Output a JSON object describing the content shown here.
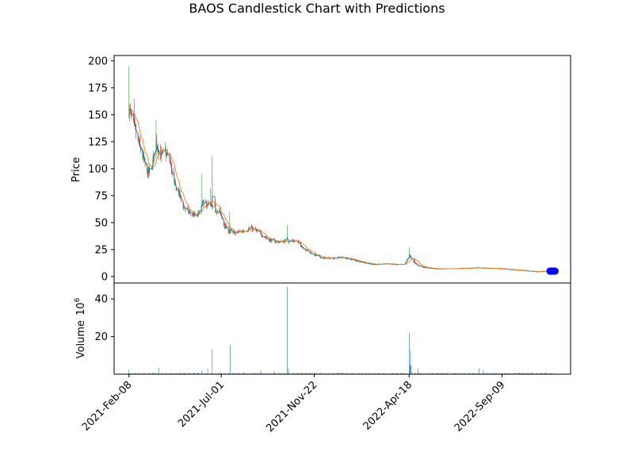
{
  "chart_data": {
    "type": "candlestick",
    "title": "BAOS Candlestick Chart with Predictions",
    "price_panel": {
      "ylabel": "Price",
      "ylim": [
        -6,
        205
      ],
      "yticks": [
        "0",
        "25",
        "50",
        "75",
        "100",
        "125",
        "150",
        "175",
        "200"
      ],
      "ytick_values": [
        0,
        25,
        50,
        75,
        100,
        125,
        150,
        175,
        200
      ],
      "up_color": "#2ca02c",
      "down_color": "#d62728",
      "ma_colors": [
        "#ff7f0e",
        "#1f77b4"
      ],
      "prediction_color": "#0000ff",
      "close_anchors": [
        [
          "2021-02-08",
          155
        ],
        [
          "2021-02-15",
          140
        ],
        [
          "2021-02-22",
          125
        ],
        [
          "2021-03-01",
          112
        ],
        [
          "2021-03-08",
          95
        ],
        [
          "2021-03-15",
          100
        ],
        [
          "2021-03-22",
          125
        ],
        [
          "2021-03-29",
          112
        ],
        [
          "2021-04-05",
          115
        ],
        [
          "2021-04-12",
          108
        ],
        [
          "2021-04-19",
          85
        ],
        [
          "2021-04-26",
          78
        ],
        [
          "2021-05-03",
          65
        ],
        [
          "2021-05-10",
          60
        ],
        [
          "2021-05-17",
          58
        ],
        [
          "2021-05-24",
          55
        ],
        [
          "2021-05-31",
          65
        ],
        [
          "2021-06-07",
          68
        ],
        [
          "2021-06-14",
          65
        ],
        [
          "2021-06-21",
          62
        ],
        [
          "2021-06-28",
          60
        ],
        [
          "2021-07-05",
          48
        ],
        [
          "2021-07-12",
          42
        ],
        [
          "2021-07-19",
          40
        ],
        [
          "2021-08-02",
          42
        ],
        [
          "2021-08-16",
          45
        ],
        [
          "2021-08-30",
          40
        ],
        [
          "2021-09-13",
          34
        ],
        [
          "2021-09-27",
          32
        ],
        [
          "2021-10-11",
          33
        ],
        [
          "2021-10-25",
          33
        ],
        [
          "2021-11-08",
          25
        ],
        [
          "2021-11-22",
          20
        ],
        [
          "2021-12-06",
          17
        ],
        [
          "2021-12-20",
          17
        ],
        [
          "2022-01-03",
          18
        ],
        [
          "2022-01-17",
          16
        ],
        [
          "2022-01-31",
          14
        ],
        [
          "2022-02-14",
          12
        ],
        [
          "2022-02-28",
          11
        ],
        [
          "2022-03-14",
          12
        ],
        [
          "2022-03-28",
          11
        ],
        [
          "2022-04-11",
          11
        ],
        [
          "2022-04-18",
          20
        ],
        [
          "2022-04-25",
          13
        ],
        [
          "2022-05-02",
          10
        ],
        [
          "2022-05-16",
          8
        ],
        [
          "2022-06-01",
          7
        ],
        [
          "2022-07-01",
          7.5
        ],
        [
          "2022-08-01",
          8
        ],
        [
          "2022-09-01",
          7.5
        ],
        [
          "2022-10-01",
          6
        ],
        [
          "2022-11-01",
          4.5
        ],
        [
          "2022-11-15",
          5
        ],
        [
          "2022-11-28",
          6
        ]
      ],
      "spikes": [
        [
          "2021-02-08",
          195
        ],
        [
          "2021-02-16",
          165
        ],
        [
          "2021-03-22",
          145
        ],
        [
          "2021-04-05",
          125
        ],
        [
          "2021-06-01",
          95
        ],
        [
          "2021-06-14",
          82
        ],
        [
          "2021-06-17",
          112
        ],
        [
          "2021-07-14",
          60
        ],
        [
          "2021-10-11",
          48
        ],
        [
          "2022-04-18",
          27
        ],
        [
          "2022-04-27",
          17
        ]
      ],
      "prediction_range": [
        "2022-11-22",
        "2022-11-30"
      ],
      "prediction_value": 5
    },
    "volume_panel": {
      "ylabel": "Volume",
      "exponent_label": "10",
      "exponent_power": "6",
      "ylim": [
        0,
        48.5
      ],
      "yticks": [
        "20",
        "40"
      ],
      "ytick_values": [
        20,
        40
      ],
      "bar_color": "#1f77b4",
      "spikes": [
        [
          "2021-02-08",
          2.5
        ],
        [
          "2021-03-26",
          3.5
        ],
        [
          "2021-06-01",
          2.0
        ],
        [
          "2021-06-10",
          3.0
        ],
        [
          "2021-06-17",
          13.0
        ],
        [
          "2021-07-15",
          15.5
        ],
        [
          "2021-08-31",
          2.0
        ],
        [
          "2021-09-21",
          1.5
        ],
        [
          "2021-10-11",
          46.5
        ],
        [
          "2021-10-13",
          3.0
        ],
        [
          "2022-04-18",
          22.0
        ],
        [
          "2022-04-19",
          4.5
        ],
        [
          "2022-04-20",
          12.5
        ],
        [
          "2022-04-21",
          5.0
        ],
        [
          "2022-05-02",
          3.0
        ],
        [
          "2022-08-04",
          3.2
        ],
        [
          "2022-08-11",
          2.0
        ]
      ],
      "baseline": 0.45
    },
    "x_axis": {
      "range": [
        "2021-01-16",
        "2022-12-24"
      ],
      "ticks": [
        "2021-Feb-08",
        "2021-Jul-01",
        "2021-Nov-22",
        "2022-Apr-18",
        "2022-Sep-09"
      ],
      "tick_dates": [
        "2021-02-08",
        "2021-07-01",
        "2021-11-22",
        "2022-04-18",
        "2022-09-09"
      ],
      "last_date": "2022-11-30"
    }
  }
}
